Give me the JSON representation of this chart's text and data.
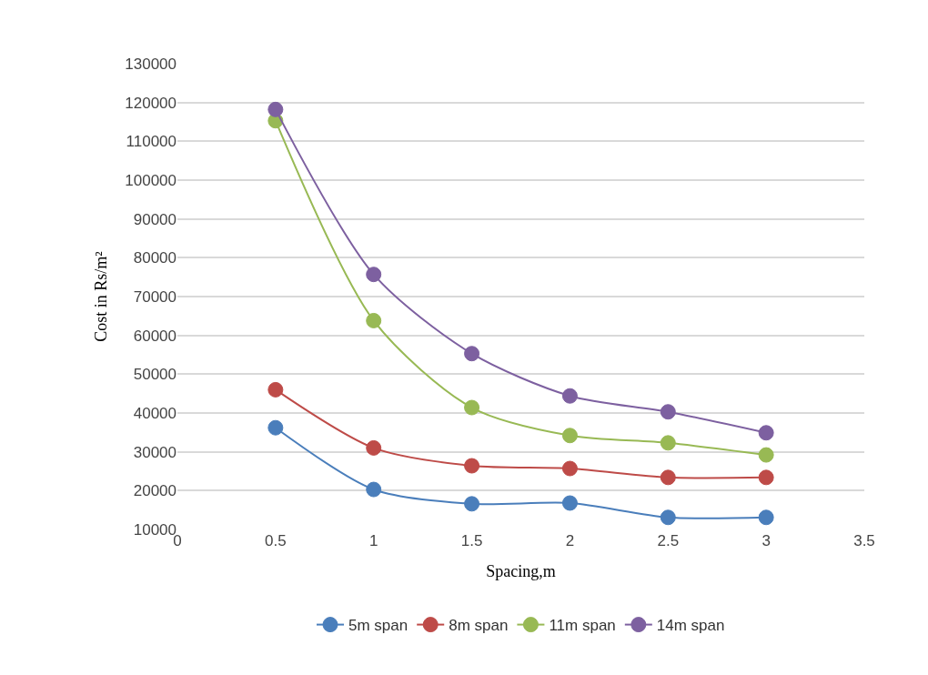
{
  "chart_data": {
    "type": "line",
    "xlabel": "Spacing,m",
    "ylabel": "Cost in Rs/m²",
    "x": [
      0.5,
      1,
      1.5,
      2,
      2.5,
      3
    ],
    "series": [
      {
        "name": "5m span",
        "color": "#4a7ebb",
        "values": [
          36200,
          20300,
          16600,
          16800,
          13100,
          13100
        ]
      },
      {
        "name": "8m span",
        "color": "#be4b48",
        "values": [
          46000,
          31000,
          26400,
          25700,
          23400,
          23400
        ]
      },
      {
        "name": "11m span",
        "color": "#98b954",
        "values": [
          115300,
          63800,
          41400,
          34200,
          32300,
          29200
        ]
      },
      {
        "name": "14m span",
        "color": "#7d60a0",
        "values": [
          118200,
          75700,
          55300,
          44400,
          40300,
          34900
        ]
      }
    ],
    "xlim": [
      0,
      3.5
    ],
    "xticks": [
      0,
      0.5,
      1,
      1.5,
      2,
      2.5,
      3,
      3.5
    ],
    "ylim": [
      10000,
      130000
    ],
    "yticks": [
      10000,
      20000,
      30000,
      40000,
      50000,
      60000,
      70000,
      80000,
      90000,
      100000,
      110000,
      120000,
      130000
    ],
    "grid": "y",
    "legend": "bottom",
    "marker": "circle",
    "line_style": "solid"
  }
}
